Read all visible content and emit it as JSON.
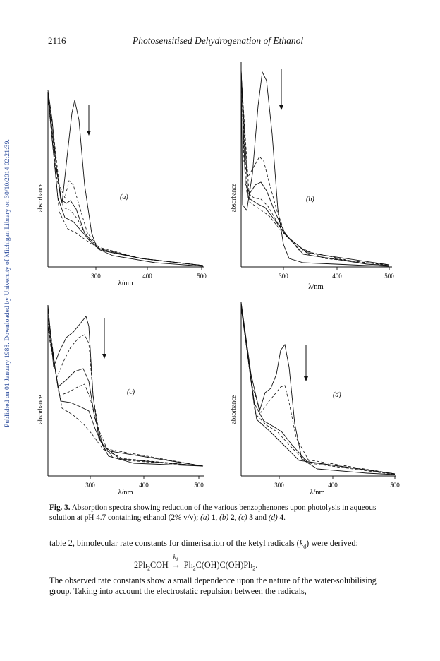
{
  "header": {
    "page_number": "2116",
    "title": "Photosensitised Dehydrogenation of Ethanol"
  },
  "sidebar": {
    "text": "Published on 01 January 1988. Downloaded by University of Michigan Library on 30/10/2014 02:21:39."
  },
  "figure": {
    "panels": [
      {
        "label": "(a)",
        "ylabel": "absorbance",
        "xlabel": "λ/nm",
        "ticks": [
          "300",
          "400",
          "500"
        ]
      },
      {
        "label": "(b)",
        "ylabel": "absorbance",
        "xlabel": "λ/nm",
        "ticks": [
          "300",
          "400",
          "500"
        ]
      },
      {
        "label": "(c)",
        "ylabel": "absorbance",
        "xlabel": "λ/nm",
        "ticks": [
          "300",
          "400",
          "500"
        ]
      },
      {
        "label": "(d)",
        "ylabel": "absorbance",
        "xlabel": "λ/nm",
        "ticks": [
          "300",
          "400",
          "500"
        ]
      }
    ]
  },
  "caption": {
    "prefix": "Fig. 3.",
    "text": "Absorption spectra showing reduction of the various benzophenones upon photolysis in aqueous solution at pH 4.7 containing ethanol (2% v/v);",
    "items": [
      {
        "label": "(a)",
        "num": "1"
      },
      {
        "label": "(b)",
        "num": "2"
      },
      {
        "label": "(c)",
        "num": "3"
      },
      {
        "label": "(d)",
        "num": "4"
      }
    ]
  },
  "body": {
    "para1_a": "table 2, bimolecular rate constants for dimerisation of the ketyl radicals (",
    "para1_k": "k",
    "para1_sub": "d",
    "para1_b": ") were derived:",
    "eq_left": "2Ph",
    "eq_sub1": "2",
    "eq_mid": "COH",
    "eq_arrow": "→",
    "eq_k": "k",
    "eq_ksub": "d",
    "eq_right1": "Ph",
    "eq_sub2": "2",
    "eq_right2": "C(OH)C(OH)Ph",
    "eq_sub3": "2",
    "eq_end": ".",
    "para2": "The observed rate constants show a small dependence upon the nature of the water-solubilising group. Taking into account the electrostatic repulsion between the radicals,"
  }
}
